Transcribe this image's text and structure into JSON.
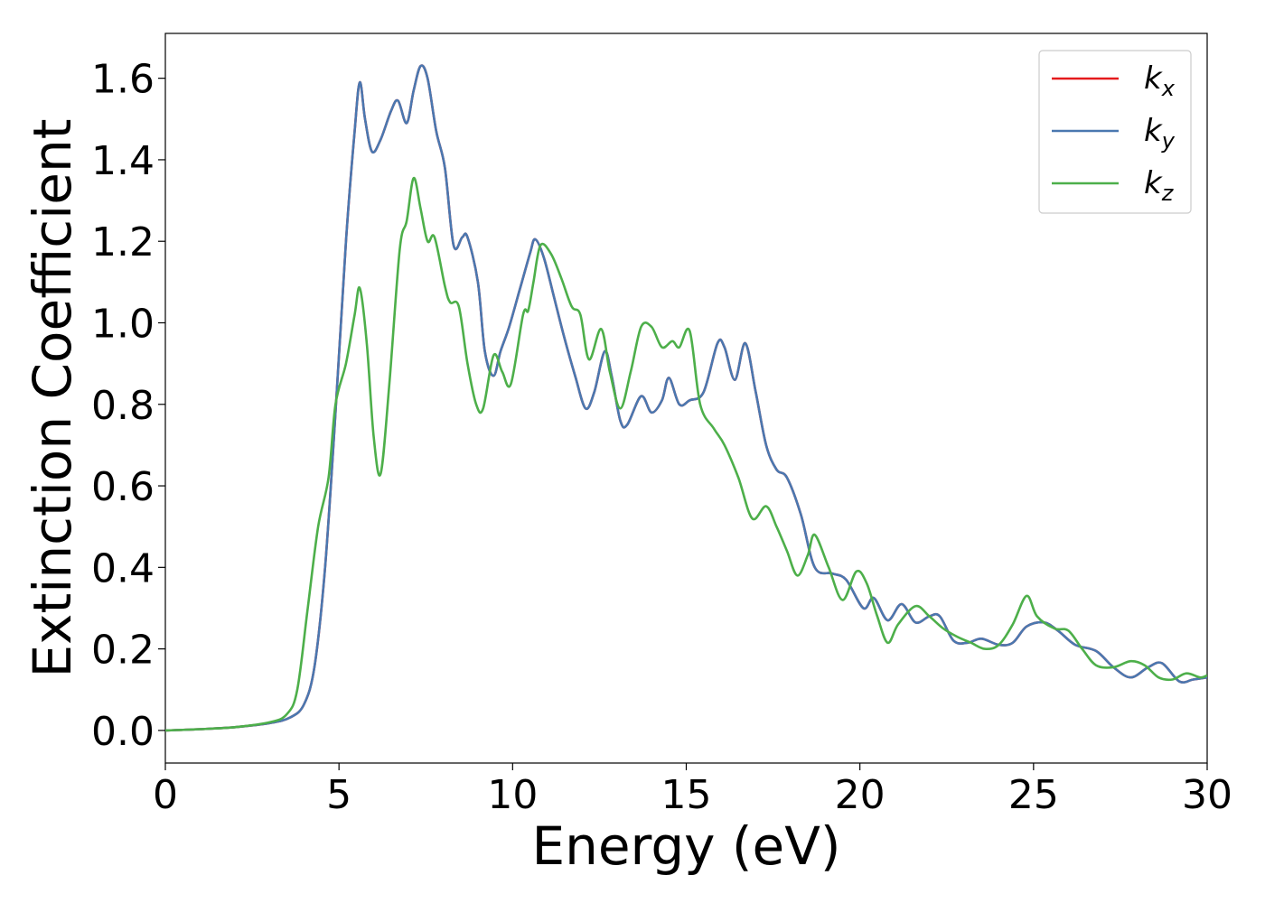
{
  "chart_data": {
    "type": "line",
    "xlabel": "Energy (eV)",
    "ylabel": "Extinction Coefficient",
    "xlim": [
      0,
      30
    ],
    "ylim": [
      -0.08,
      1.71
    ],
    "x_ticks": [
      "0",
      "5",
      "10",
      "15",
      "20",
      "25",
      "30"
    ],
    "y_ticks": [
      "0.0",
      "0.2",
      "0.4",
      "0.6",
      "0.8",
      "1.0",
      "1.2",
      "1.4",
      "1.6"
    ],
    "grid": false,
    "legend_position": "top-right",
    "series": [
      {
        "name": "k_x",
        "legend_main": "k",
        "legend_sub": "x",
        "color": "#e41a1c",
        "points": [
          [
            0,
            0
          ],
          [
            1,
            0.003
          ],
          [
            2,
            0.008
          ],
          [
            3,
            0.018
          ],
          [
            3.6,
            0.032
          ],
          [
            4,
            0.065
          ],
          [
            4.3,
            0.16
          ],
          [
            4.6,
            0.4
          ],
          [
            4.9,
            0.78
          ],
          [
            5.2,
            1.2
          ],
          [
            5.45,
            1.47
          ],
          [
            5.6,
            1.59
          ],
          [
            5.75,
            1.5
          ],
          [
            5.95,
            1.42
          ],
          [
            6.2,
            1.45
          ],
          [
            6.5,
            1.52
          ],
          [
            6.7,
            1.545
          ],
          [
            6.95,
            1.49
          ],
          [
            7.15,
            1.57
          ],
          [
            7.35,
            1.63
          ],
          [
            7.55,
            1.6
          ],
          [
            7.8,
            1.47
          ],
          [
            8.05,
            1.38
          ],
          [
            8.3,
            1.19
          ],
          [
            8.55,
            1.21
          ],
          [
            8.7,
            1.21
          ],
          [
            9.0,
            1.1
          ],
          [
            9.2,
            0.93
          ],
          [
            9.45,
            0.87
          ],
          [
            9.65,
            0.93
          ],
          [
            9.9,
            0.99
          ],
          [
            10.2,
            1.08
          ],
          [
            10.5,
            1.17
          ],
          [
            10.65,
            1.205
          ],
          [
            10.9,
            1.16
          ],
          [
            11.2,
            1.06
          ],
          [
            11.5,
            0.96
          ],
          [
            11.8,
            0.87
          ],
          [
            12.1,
            0.79
          ],
          [
            12.35,
            0.83
          ],
          [
            12.65,
            0.93
          ],
          [
            12.85,
            0.87
          ],
          [
            13.1,
            0.76
          ],
          [
            13.3,
            0.75
          ],
          [
            13.7,
            0.82
          ],
          [
            14.0,
            0.78
          ],
          [
            14.3,
            0.81
          ],
          [
            14.5,
            0.865
          ],
          [
            14.8,
            0.8
          ],
          [
            15.1,
            0.81
          ],
          [
            15.5,
            0.83
          ],
          [
            15.9,
            0.95
          ],
          [
            16.1,
            0.94
          ],
          [
            16.4,
            0.86
          ],
          [
            16.7,
            0.95
          ],
          [
            17.0,
            0.83
          ],
          [
            17.3,
            0.7
          ],
          [
            17.6,
            0.64
          ],
          [
            17.9,
            0.62
          ],
          [
            18.3,
            0.53
          ],
          [
            18.7,
            0.4
          ],
          [
            19.2,
            0.385
          ],
          [
            19.6,
            0.37
          ],
          [
            20.1,
            0.3
          ],
          [
            20.4,
            0.325
          ],
          [
            20.8,
            0.27
          ],
          [
            21.2,
            0.31
          ],
          [
            21.6,
            0.265
          ],
          [
            22.0,
            0.28
          ],
          [
            22.3,
            0.28
          ],
          [
            22.7,
            0.22
          ],
          [
            23.1,
            0.215
          ],
          [
            23.5,
            0.225
          ],
          [
            24.0,
            0.21
          ],
          [
            24.4,
            0.215
          ],
          [
            24.8,
            0.255
          ],
          [
            25.3,
            0.265
          ],
          [
            25.7,
            0.245
          ],
          [
            26.2,
            0.21
          ],
          [
            26.8,
            0.195
          ],
          [
            27.3,
            0.155
          ],
          [
            27.8,
            0.13
          ],
          [
            28.3,
            0.155
          ],
          [
            28.7,
            0.165
          ],
          [
            29.2,
            0.12
          ],
          [
            29.6,
            0.125
          ],
          [
            30,
            0.13
          ]
        ]
      },
      {
        "name": "k_y",
        "legend_main": "k",
        "legend_sub": "y",
        "color": "#4a78b0",
        "points": [
          [
            0,
            0
          ],
          [
            1,
            0.003
          ],
          [
            2,
            0.008
          ],
          [
            3,
            0.018
          ],
          [
            3.6,
            0.032
          ],
          [
            4,
            0.065
          ],
          [
            4.3,
            0.16
          ],
          [
            4.6,
            0.4
          ],
          [
            4.9,
            0.78
          ],
          [
            5.2,
            1.2
          ],
          [
            5.45,
            1.47
          ],
          [
            5.6,
            1.59
          ],
          [
            5.75,
            1.5
          ],
          [
            5.95,
            1.42
          ],
          [
            6.2,
            1.45
          ],
          [
            6.5,
            1.52
          ],
          [
            6.7,
            1.545
          ],
          [
            6.95,
            1.49
          ],
          [
            7.15,
            1.57
          ],
          [
            7.35,
            1.63
          ],
          [
            7.55,
            1.6
          ],
          [
            7.8,
            1.47
          ],
          [
            8.05,
            1.38
          ],
          [
            8.3,
            1.19
          ],
          [
            8.55,
            1.21
          ],
          [
            8.7,
            1.21
          ],
          [
            9.0,
            1.1
          ],
          [
            9.2,
            0.93
          ],
          [
            9.45,
            0.87
          ],
          [
            9.65,
            0.93
          ],
          [
            9.9,
            0.99
          ],
          [
            10.2,
            1.08
          ],
          [
            10.5,
            1.17
          ],
          [
            10.65,
            1.205
          ],
          [
            10.9,
            1.16
          ],
          [
            11.2,
            1.06
          ],
          [
            11.5,
            0.96
          ],
          [
            11.8,
            0.87
          ],
          [
            12.1,
            0.79
          ],
          [
            12.35,
            0.83
          ],
          [
            12.65,
            0.93
          ],
          [
            12.85,
            0.87
          ],
          [
            13.1,
            0.76
          ],
          [
            13.3,
            0.75
          ],
          [
            13.7,
            0.82
          ],
          [
            14.0,
            0.78
          ],
          [
            14.3,
            0.81
          ],
          [
            14.5,
            0.865
          ],
          [
            14.8,
            0.8
          ],
          [
            15.1,
            0.81
          ],
          [
            15.5,
            0.83
          ],
          [
            15.9,
            0.95
          ],
          [
            16.1,
            0.94
          ],
          [
            16.4,
            0.86
          ],
          [
            16.7,
            0.95
          ],
          [
            17.0,
            0.83
          ],
          [
            17.3,
            0.7
          ],
          [
            17.6,
            0.64
          ],
          [
            17.9,
            0.62
          ],
          [
            18.3,
            0.53
          ],
          [
            18.7,
            0.4
          ],
          [
            19.2,
            0.385
          ],
          [
            19.6,
            0.37
          ],
          [
            20.1,
            0.3
          ],
          [
            20.4,
            0.325
          ],
          [
            20.8,
            0.27
          ],
          [
            21.2,
            0.31
          ],
          [
            21.6,
            0.265
          ],
          [
            22.0,
            0.28
          ],
          [
            22.3,
            0.28
          ],
          [
            22.7,
            0.22
          ],
          [
            23.1,
            0.215
          ],
          [
            23.5,
            0.225
          ],
          [
            24.0,
            0.21
          ],
          [
            24.4,
            0.215
          ],
          [
            24.8,
            0.255
          ],
          [
            25.3,
            0.265
          ],
          [
            25.7,
            0.245
          ],
          [
            26.2,
            0.21
          ],
          [
            26.8,
            0.195
          ],
          [
            27.3,
            0.155
          ],
          [
            27.8,
            0.13
          ],
          [
            28.3,
            0.155
          ],
          [
            28.7,
            0.165
          ],
          [
            29.2,
            0.12
          ],
          [
            29.6,
            0.125
          ],
          [
            30,
            0.13
          ]
        ]
      },
      {
        "name": "k_z",
        "legend_main": "k",
        "legend_sub": "z",
        "color": "#4daf4a",
        "points": [
          [
            0,
            0
          ],
          [
            1,
            0.003
          ],
          [
            2,
            0.008
          ],
          [
            3,
            0.02
          ],
          [
            3.5,
            0.04
          ],
          [
            3.8,
            0.1
          ],
          [
            4.1,
            0.3
          ],
          [
            4.4,
            0.5
          ],
          [
            4.7,
            0.62
          ],
          [
            4.9,
            0.8
          ],
          [
            5.2,
            0.9
          ],
          [
            5.45,
            1.02
          ],
          [
            5.6,
            1.085
          ],
          [
            5.8,
            0.95
          ],
          [
            6.0,
            0.72
          ],
          [
            6.2,
            0.63
          ],
          [
            6.45,
            0.85
          ],
          [
            6.75,
            1.18
          ],
          [
            6.95,
            1.25
          ],
          [
            7.15,
            1.355
          ],
          [
            7.35,
            1.28
          ],
          [
            7.55,
            1.2
          ],
          [
            7.75,
            1.21
          ],
          [
            8.05,
            1.09
          ],
          [
            8.2,
            1.05
          ],
          [
            8.45,
            1.04
          ],
          [
            8.7,
            0.9
          ],
          [
            8.95,
            0.8
          ],
          [
            9.15,
            0.79
          ],
          [
            9.45,
            0.92
          ],
          [
            9.7,
            0.88
          ],
          [
            9.95,
            0.85
          ],
          [
            10.3,
            1.02
          ],
          [
            10.45,
            1.03
          ],
          [
            10.6,
            1.1
          ],
          [
            10.8,
            1.19
          ],
          [
            11.1,
            1.17
          ],
          [
            11.4,
            1.11
          ],
          [
            11.7,
            1.04
          ],
          [
            11.95,
            1.02
          ],
          [
            12.2,
            0.91
          ],
          [
            12.55,
            0.985
          ],
          [
            12.8,
            0.88
          ],
          [
            13.1,
            0.79
          ],
          [
            13.4,
            0.88
          ],
          [
            13.7,
            0.99
          ],
          [
            14.0,
            0.99
          ],
          [
            14.3,
            0.94
          ],
          [
            14.6,
            0.955
          ],
          [
            14.8,
            0.94
          ],
          [
            15.1,
            0.98
          ],
          [
            15.4,
            0.8
          ],
          [
            15.8,
            0.74
          ],
          [
            16.1,
            0.7
          ],
          [
            16.5,
            0.62
          ],
          [
            16.9,
            0.52
          ],
          [
            17.3,
            0.55
          ],
          [
            17.6,
            0.5
          ],
          [
            17.9,
            0.44
          ],
          [
            18.2,
            0.38
          ],
          [
            18.5,
            0.43
          ],
          [
            18.7,
            0.48
          ],
          [
            19.1,
            0.4
          ],
          [
            19.5,
            0.32
          ],
          [
            19.9,
            0.39
          ],
          [
            20.2,
            0.36
          ],
          [
            20.5,
            0.28
          ],
          [
            20.8,
            0.215
          ],
          [
            21.1,
            0.26
          ],
          [
            21.6,
            0.305
          ],
          [
            22.0,
            0.28
          ],
          [
            22.4,
            0.25
          ],
          [
            22.8,
            0.23
          ],
          [
            23.2,
            0.215
          ],
          [
            23.6,
            0.2
          ],
          [
            24.0,
            0.21
          ],
          [
            24.4,
            0.26
          ],
          [
            24.8,
            0.33
          ],
          [
            25.1,
            0.28
          ],
          [
            25.6,
            0.25
          ],
          [
            26.0,
            0.245
          ],
          [
            26.4,
            0.2
          ],
          [
            26.8,
            0.16
          ],
          [
            27.3,
            0.155
          ],
          [
            27.8,
            0.17
          ],
          [
            28.2,
            0.16
          ],
          [
            28.6,
            0.13
          ],
          [
            29.0,
            0.125
          ],
          [
            29.4,
            0.14
          ],
          [
            29.8,
            0.13
          ],
          [
            30,
            0.135
          ]
        ]
      }
    ]
  }
}
